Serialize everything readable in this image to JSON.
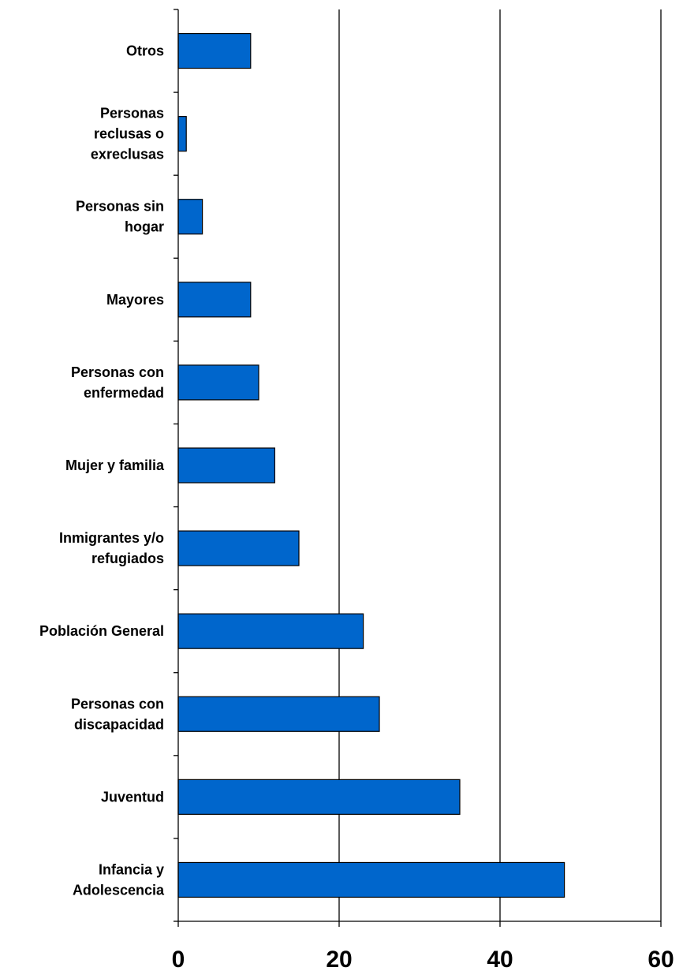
{
  "chart_data": {
    "type": "bar",
    "orientation": "horizontal",
    "categories": [
      [
        "Otros"
      ],
      [
        "Personas",
        "reclusas o",
        "exreclusas"
      ],
      [
        "Personas sin",
        "hogar"
      ],
      [
        "Mayores"
      ],
      [
        "Personas con",
        "enfermedad"
      ],
      [
        "Mujer y familia"
      ],
      [
        "Inmigrantes y/o",
        "refugiados"
      ],
      [
        "Población General"
      ],
      [
        "Personas con",
        "discapacidad"
      ],
      [
        "Juventud"
      ],
      [
        "Infancia y",
        "Adolescencia"
      ]
    ],
    "values": [
      9,
      1,
      3,
      9,
      10,
      12,
      15,
      23,
      25,
      35,
      48
    ],
    "xlim": [
      0,
      60
    ],
    "xticks": [
      0,
      20,
      40,
      60
    ],
    "grid": true,
    "bar_color": "#0066cc",
    "title": "",
    "xlabel": "",
    "ylabel": ""
  }
}
